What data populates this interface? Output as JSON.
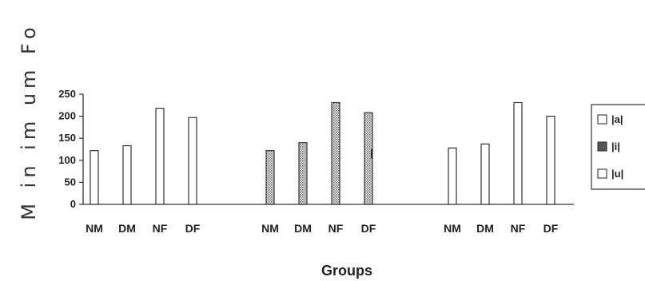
{
  "chart_data": {
    "type": "bar",
    "ylabel": "M in im um Fo",
    "xlabel": "Groups",
    "ylim": [
      0,
      250
    ],
    "yticks": [
      0,
      50,
      100,
      150,
      200,
      250
    ],
    "categories": [
      "NM",
      "DM",
      "NF",
      "DF"
    ],
    "series": [
      {
        "name": "|a|",
        "values": [
          122,
          133,
          218,
          197
        ],
        "pattern": "plain"
      },
      {
        "name": "|i|",
        "values": [
          122,
          140,
          231,
          208
        ],
        "pattern": "dotted"
      },
      {
        "name": "|u|",
        "values": [
          128,
          137,
          231,
          200
        ],
        "pattern": "plain"
      }
    ],
    "legend_position": "right",
    "annotation": "|"
  }
}
